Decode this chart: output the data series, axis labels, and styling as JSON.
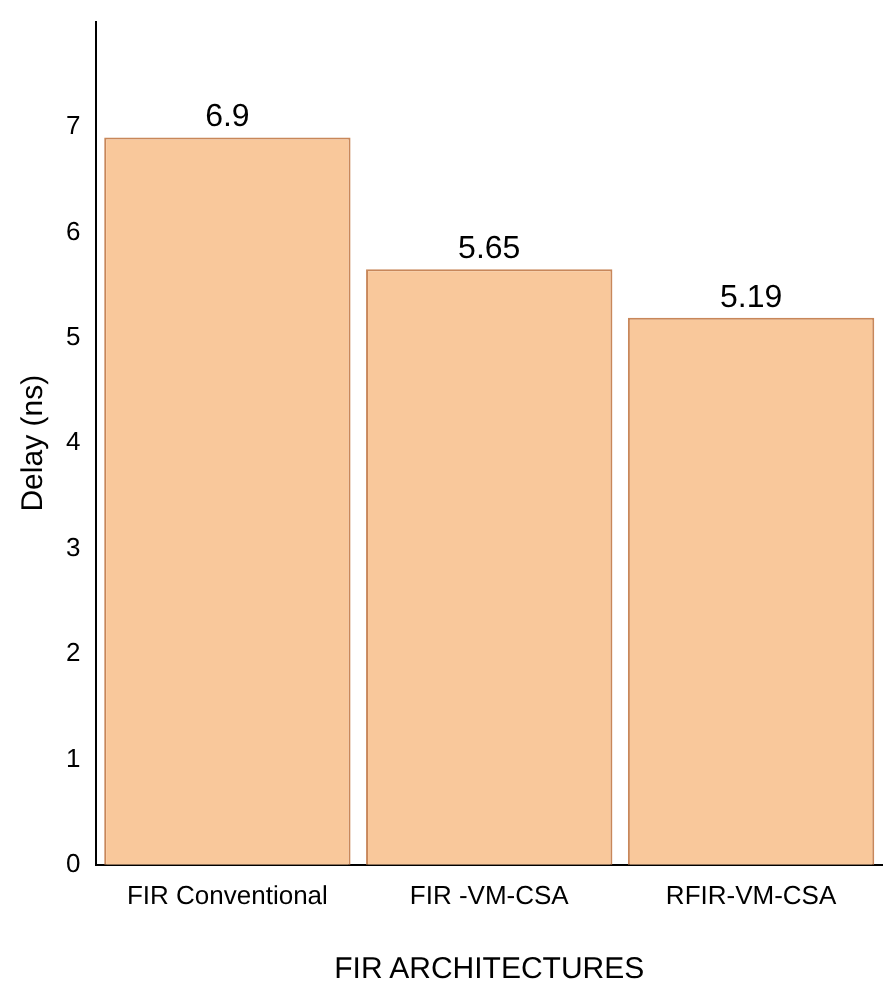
{
  "chart_data": {
    "type": "bar",
    "xlabel": "FIR ARCHITECTURES",
    "ylabel": "Delay (ns)",
    "categories": [
      "FIR Conventional",
      "FIR -VM-CSA",
      "RFIR-VM-CSA"
    ],
    "values": [
      6.9,
      5.65,
      5.19
    ],
    "color": "#f9c89b",
    "ylim": [
      0,
      8
    ],
    "yticks": [
      0,
      1,
      2,
      3,
      4,
      5,
      6,
      7
    ],
    "grid": false,
    "data_labels": true
  }
}
